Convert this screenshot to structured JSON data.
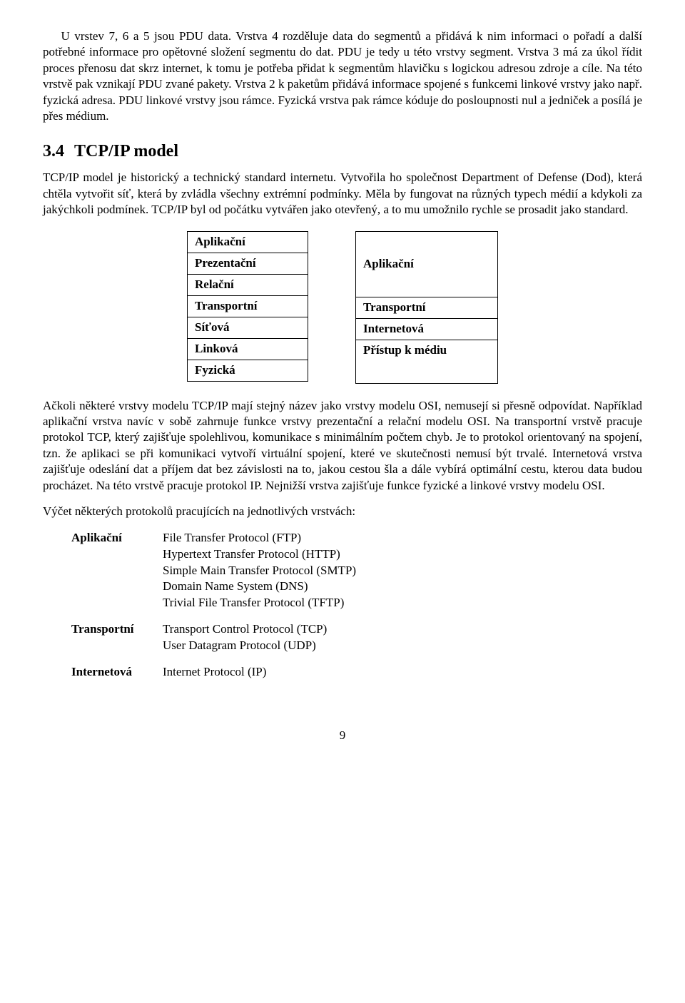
{
  "para1": "U vrstev 7, 6 a 5 jsou PDU data. Vrstva 4 rozděluje data do segmentů a přidává k nim informaci o pořadí a další potřebné informace pro opětovné složení segmentu do dat. PDU je tedy u této vrstvy segment. Vrstva 3 má za úkol řídit proces přenosu dat skrz internet, k tomu je potřeba přidat k segmentům hlavičku s logickou adresou zdroje a cíle. Na této vrstvě pak vznikají PDU zvané pakety. Vrstva 2 k paketům přidává informace spojené s funkcemi linkové vrstvy jako např. fyzická adresa. PDU linkové vrstvy jsou rámce. Fyzická vrstva pak rámce kóduje do posloupnosti nul a jedniček a posílá je přes médium.",
  "section_number": "3.4",
  "section_title": "TCP/IP model",
  "para2": "TCP/IP model je historický a technický standard internetu. Vytvořila ho společnost Department of Defense (Dod), která chtěla vytvořit síť, která by zvládla všechny extrémní podmínky. Měla by fungovat na různých typech médií a kdykoli za jakýchkoli podmínek. TCP/IP byl od počátku vytvářen jako otevřený, a to mu umožnilo rychle se prosadit jako standard.",
  "diagram": {
    "osi": [
      "Aplikační",
      "Prezentační",
      "Relační",
      "Transportní",
      "Síťová",
      "Linková",
      "Fyzická"
    ],
    "tcpip": [
      "Aplikační",
      "Transportní",
      "Internetová",
      "Přístup k médiu"
    ]
  },
  "para3": "Ačkoli některé vrstvy modelu TCP/IP mají stejný název jako vrstvy modelu OSI, nemusejí si přesně odpovídat. Například aplikační vrstva navíc v sobě zahrnuje funkce vrstvy prezentační a relační modelu OSI. Na transportní vrstvě pracuje protokol TCP, který zajišťuje spolehlivou, komunikace s minimálním počtem chyb. Je to protokol orientovaný na spojení, tzn. že aplikaci se při komunikaci vytvoří virtuální spojení, které ve skutečnosti nemusí být trvalé. Internetová vrstva zajišťuje odeslání dat a příjem dat bez závislosti na to, jakou cestou šla a dále vybírá optimální cestu, kterou data budou procházet. Na této vrstvě pracuje protokol IP. Nejnižší vrstva zajišťuje funkce fyzické a linkové vrstvy modelu OSI.",
  "para4": "Výčet některých protokolů pracujících na jednotlivých vrstvách:",
  "protocols": {
    "app_label": "Aplikační",
    "app_items": [
      "File Transfer Protocol (FTP)",
      "Hypertext Transfer Protocol (HTTP)",
      "Simple Main Transfer Protocol (SMTP)",
      "Domain Name System (DNS)",
      "Trivial File Transfer Protocol (TFTP)"
    ],
    "trans_label": "Transportní",
    "trans_items": [
      "Transport Control Protocol (TCP)",
      "User Datagram Protocol (UDP)"
    ],
    "inet_label": "Internetová",
    "inet_items": [
      "Internet Protocol (IP)"
    ]
  },
  "page_number": "9"
}
